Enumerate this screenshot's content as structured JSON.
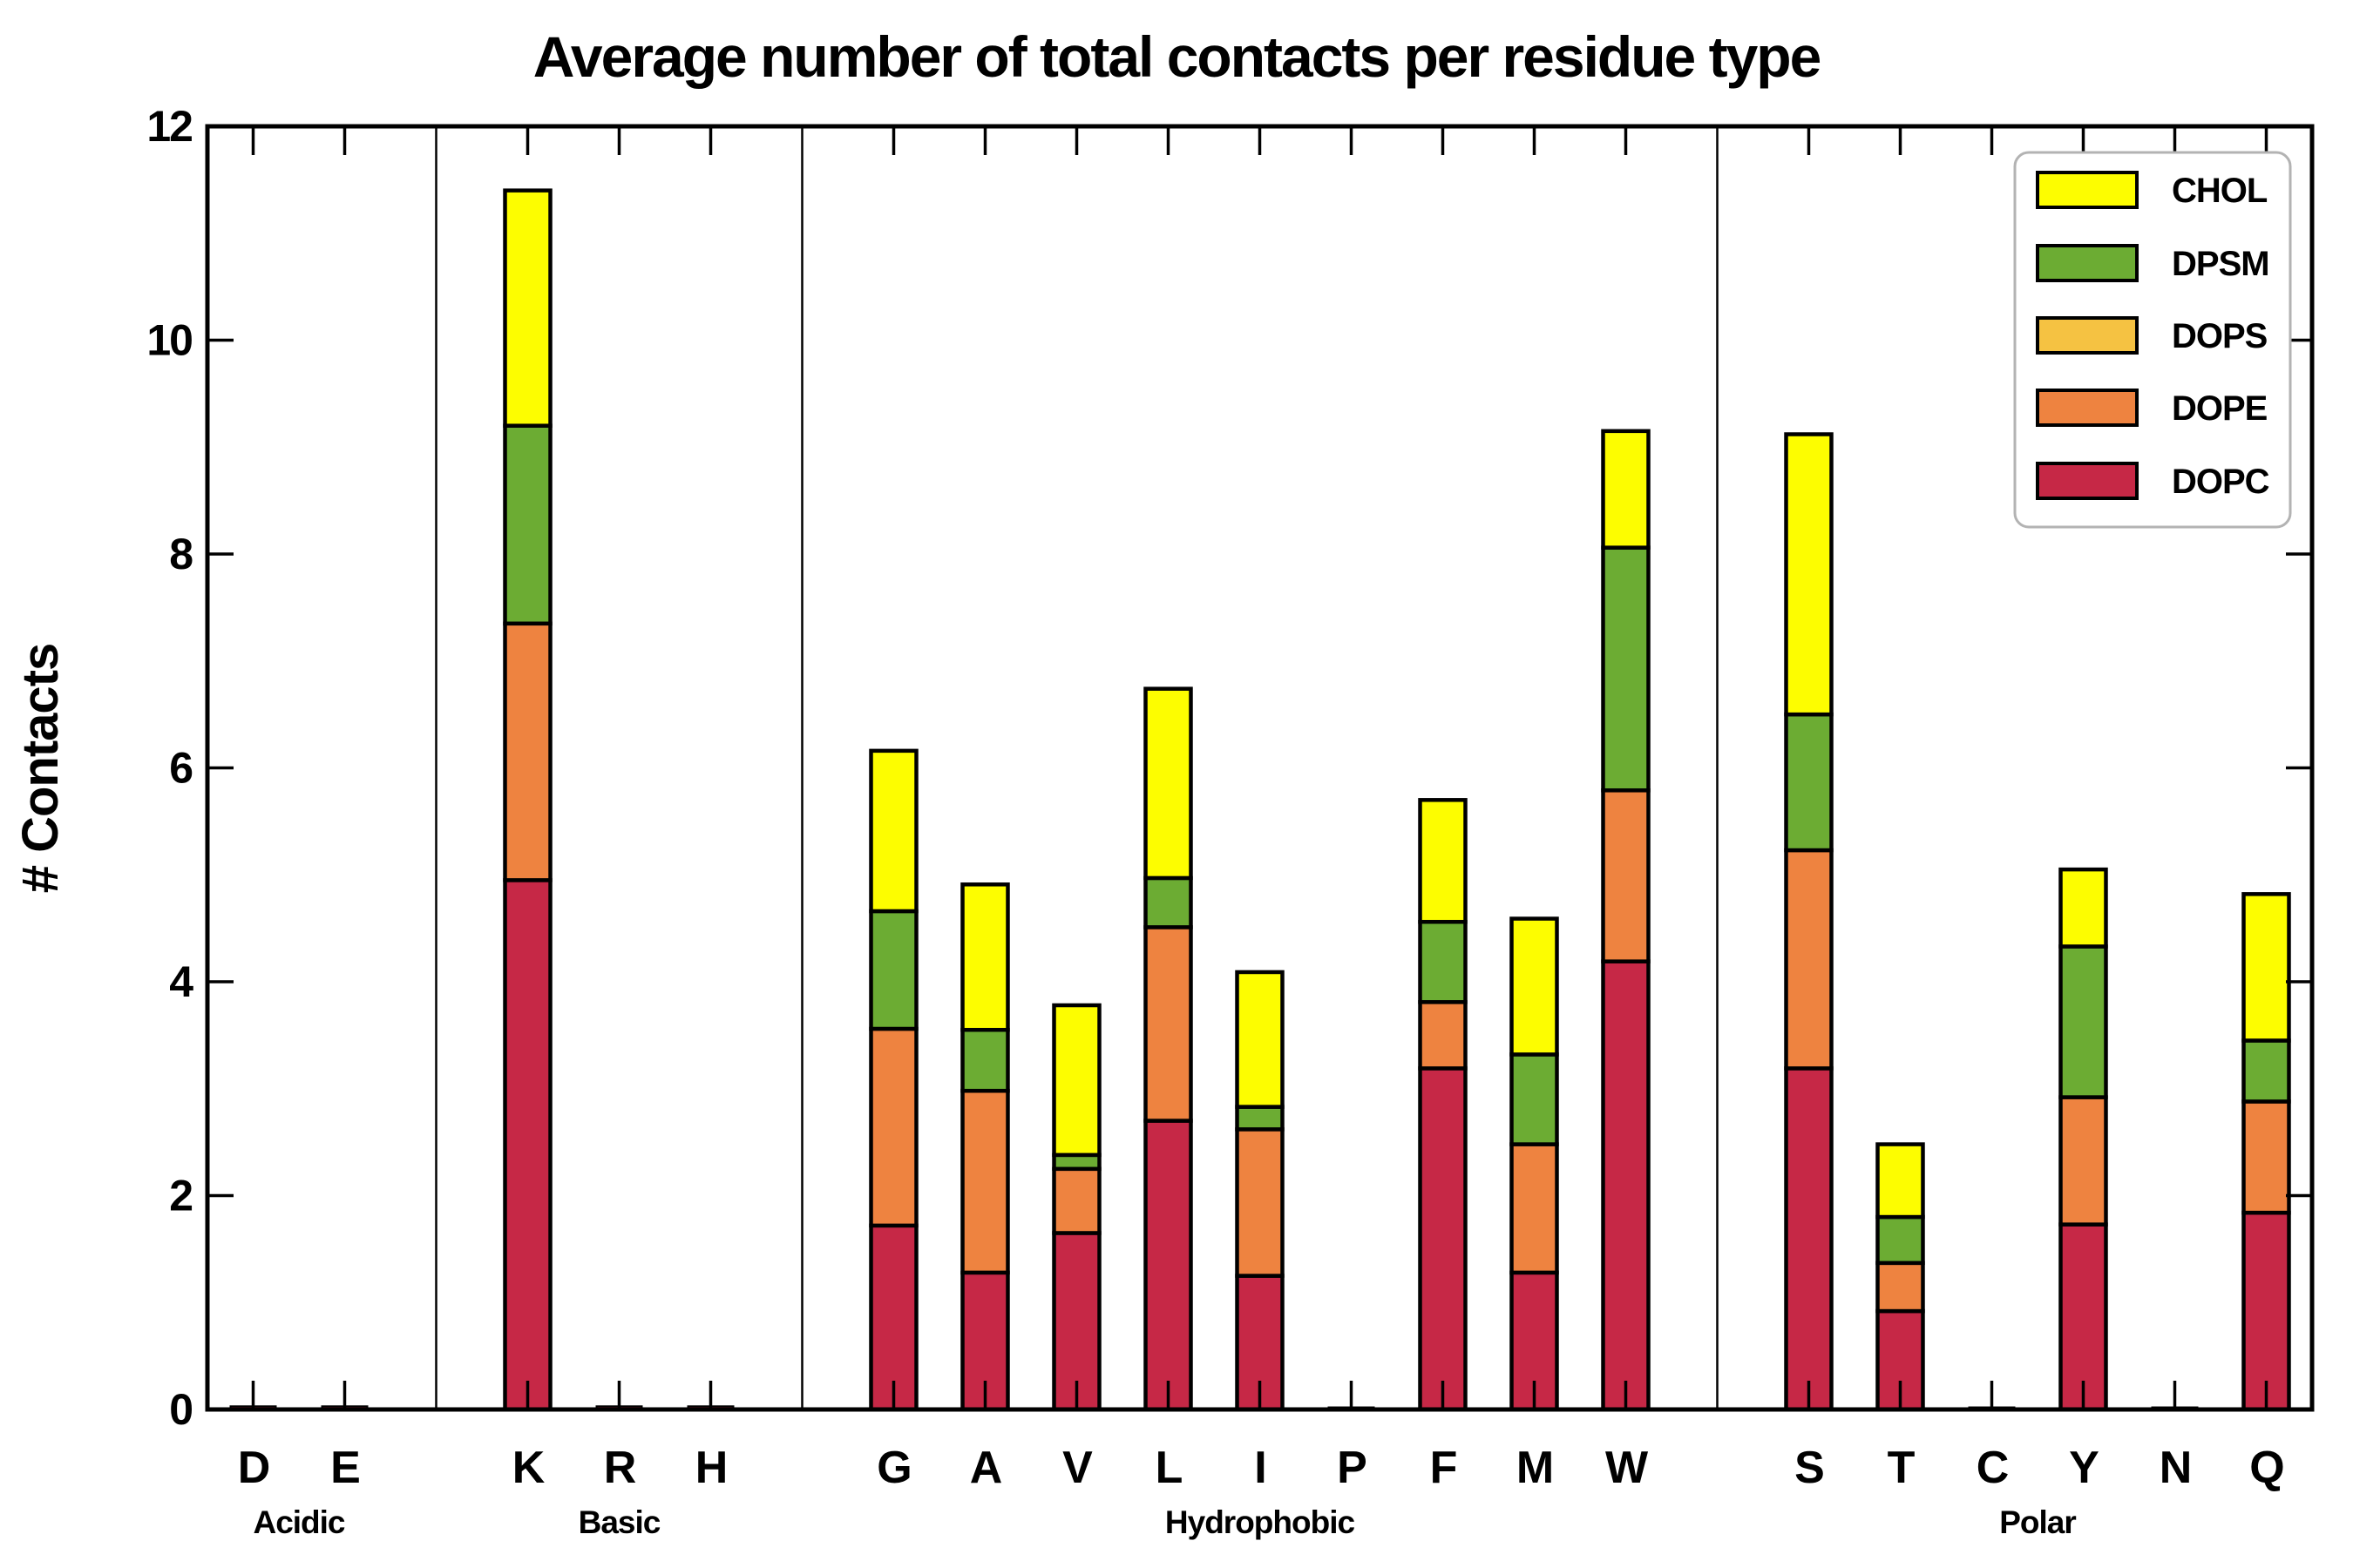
{
  "title": "Average number of total contacts per residue type",
  "ylabel": "# Contacts",
  "legend": {
    "entries": [
      "CHOL",
      "DPSM",
      "DOPS",
      "DOPE",
      "DOPC"
    ]
  },
  "colors": {
    "CHOL": "#FDFD00",
    "DPSM": "#6CAC33",
    "DOPS": "#F5C242",
    "DOPE": "#EE8340",
    "DOPC": "#C62846",
    "axis": "#000000",
    "legend_border": "#b3b3b3",
    "background": "#ffffff"
  },
  "chart_data": {
    "type": "bar",
    "stacked": true,
    "title": "Average number of total contacts per residue type",
    "xlabel": "",
    "ylabel": "# Contacts",
    "ylim": [
      0,
      12
    ],
    "yticks": [
      0,
      2,
      4,
      6,
      8,
      10,
      12
    ],
    "grid": false,
    "legend_position": "upper right",
    "legend_order_top_to_bottom": [
      "CHOL",
      "DPSM",
      "DOPS",
      "DOPE",
      "DOPC"
    ],
    "groups": [
      {
        "label": "Acidic",
        "residues": [
          "D",
          "E"
        ]
      },
      {
        "label": "Basic",
        "residues": [
          "K",
          "R",
          "H"
        ]
      },
      {
        "label": "Hydrophobic",
        "residues": [
          "G",
          "A",
          "V",
          "L",
          "I",
          "P",
          "F",
          "M",
          "W"
        ]
      },
      {
        "label": "Polar",
        "residues": [
          "S",
          "T",
          "C",
          "Y",
          "N",
          "Q"
        ]
      }
    ],
    "categories": [
      "D",
      "E",
      "K",
      "R",
      "H",
      "G",
      "A",
      "V",
      "L",
      "I",
      "P",
      "F",
      "M",
      "W",
      "S",
      "T",
      "C",
      "Y",
      "N",
      "Q"
    ],
    "series": [
      {
        "name": "DOPC",
        "color": "#C62846",
        "values": [
          0.03,
          0.03,
          4.95,
          0.03,
          0.03,
          1.72,
          1.28,
          1.65,
          2.7,
          1.25,
          0.02,
          3.19,
          1.28,
          4.19,
          3.19,
          0.92,
          0.02,
          1.73,
          0.02,
          1.84
        ]
      },
      {
        "name": "DOPE",
        "color": "#EE8340",
        "values": [
          0,
          0,
          2.4,
          0,
          0,
          1.84,
          1.7,
          0.6,
          1.81,
          1.37,
          0,
          0.62,
          1.2,
          1.6,
          2.04,
          0.45,
          0,
          1.19,
          0,
          1.04
        ]
      },
      {
        "name": "DOPS",
        "color": "#F5C242",
        "values": [
          0,
          0,
          0,
          0,
          0,
          0,
          0,
          0,
          0,
          0,
          0,
          0,
          0,
          0,
          0,
          0,
          0,
          0,
          0,
          0
        ]
      },
      {
        "name": "DPSM",
        "color": "#6CAC33",
        "values": [
          0,
          0,
          1.85,
          0,
          0,
          1.1,
          0.57,
          0.13,
          0.46,
          0.21,
          0,
          0.75,
          0.84,
          2.27,
          1.27,
          0.43,
          0,
          1.41,
          0,
          0.57
        ]
      },
      {
        "name": "CHOL",
        "color": "#FDFD00",
        "values": [
          0,
          0,
          2.2,
          0,
          0,
          1.5,
          1.36,
          1.4,
          1.77,
          1.26,
          0,
          1.14,
          1.27,
          1.09,
          2.62,
          0.68,
          0,
          0.72,
          0,
          1.37
        ]
      }
    ],
    "totals": [
      0.03,
      0.03,
      11.4,
      0.03,
      0.03,
      6.16,
      4.91,
      3.78,
      6.74,
      4.09,
      0.02,
      5.7,
      4.59,
      9.15,
      9.12,
      2.48,
      0.02,
      5.05,
      0.02,
      4.82
    ]
  }
}
